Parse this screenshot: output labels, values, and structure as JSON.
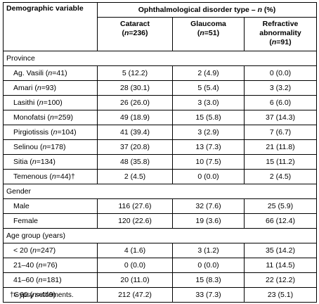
{
  "table": {
    "header": {
      "demographic": "Demographic variable",
      "disorder_type": "Ophthalmological disorder type",
      "disorder_type_sep": " – ",
      "disorder_type_unit_n": "n",
      "disorder_type_unit_pct": " (%)",
      "columns": [
        {
          "name": "Cataract",
          "count_prefix": "(",
          "n": "n",
          "count": "=236)"
        },
        {
          "name": "Glaucoma",
          "count_prefix": "(",
          "n": "n",
          "count": "=51)"
        },
        {
          "name": "Refractive abnormality",
          "count_prefix": "(",
          "n": "n",
          "count": "=91)"
        }
      ]
    },
    "sections": [
      {
        "title": "Province",
        "rows": [
          {
            "label": "Ag. Vasili",
            "n": "n",
            "count": "=41)",
            "suffix": "",
            "values": [
              "5 (12.2)",
              "2 (4.9)",
              "0 (0.0)"
            ]
          },
          {
            "label": "Amari",
            "n": "n",
            "count": "=93)",
            "suffix": "",
            "values": [
              "28 (30.1)",
              "5 (5.4)",
              "3 (3.2)"
            ]
          },
          {
            "label": "Lasithi",
            "n": "n",
            "count": "=100)",
            "suffix": "",
            "values": [
              "26 (26.0)",
              "3 (3.0)",
              "6 (6.0)"
            ]
          },
          {
            "label": "Monofatsi",
            "n": "n",
            "count": "=259)",
            "suffix": "",
            "values": [
              "49 (18.9)",
              "15 (5.8)",
              "37 (14.3)"
            ]
          },
          {
            "label": "Pirgiotissis",
            "n": "n",
            "count": "=104)",
            "suffix": "",
            "values": [
              "41 (39.4)",
              "3 (2.9)",
              "7 (6.7)"
            ]
          },
          {
            "label": "Selinou",
            "n": "n",
            "count": "=178)",
            "suffix": "",
            "values": [
              "37 (20.8)",
              "13 (7.3)",
              "21 (11.8)"
            ]
          },
          {
            "label": "Sitia",
            "n": "n",
            "count": "=134)",
            "suffix": "",
            "values": [
              "48 (35.8)",
              "10 (7.5)",
              "15 (11.2)"
            ]
          },
          {
            "label": "Temenous",
            "n": "n",
            "count": "=44)",
            "suffix": "†",
            "values": [
              "2 (4.5)",
              "0 (0.0)",
              "2 (4.5)"
            ]
          }
        ]
      },
      {
        "title": "Gender",
        "rows": [
          {
            "label": "Male",
            "n": "",
            "count": "",
            "suffix": "",
            "values": [
              "116 (27.6)",
              "32 (7.6)",
              "25 (5.9)"
            ]
          },
          {
            "label": "Female",
            "n": "",
            "count": "",
            "suffix": "",
            "values": [
              "120 (22.6)",
              "19 (3.6)",
              "66 (12.4)"
            ]
          }
        ]
      },
      {
        "title": "Age group (years)",
        "rows": [
          {
            "label": "< 20",
            "n": "n",
            "count": "=247)",
            "suffix": "",
            "values": [
              "4 (1.6)",
              "3 (1.2)",
              "35 (14.2)"
            ]
          },
          {
            "label": "21–40",
            "n": "n",
            "count": "=76)",
            "suffix": "",
            "values": [
              "0 (0.0)",
              "0 (0.0)",
              "11 (14.5)"
            ]
          },
          {
            "label": "41–60",
            "n": "n",
            "count": "=181)",
            "suffix": "",
            "values": [
              "20 (11.0)",
              "15 (8.3)",
              "22 (12.2)"
            ]
          },
          {
            "label": "> 60",
            "n": "n",
            "count": "=449)",
            "suffix": "",
            "values": [
              "212 (47.2)",
              "33 (7.3)",
              "23 (5.1)"
            ]
          }
        ]
      }
    ],
    "footnote": "†Gypsy settlements."
  }
}
